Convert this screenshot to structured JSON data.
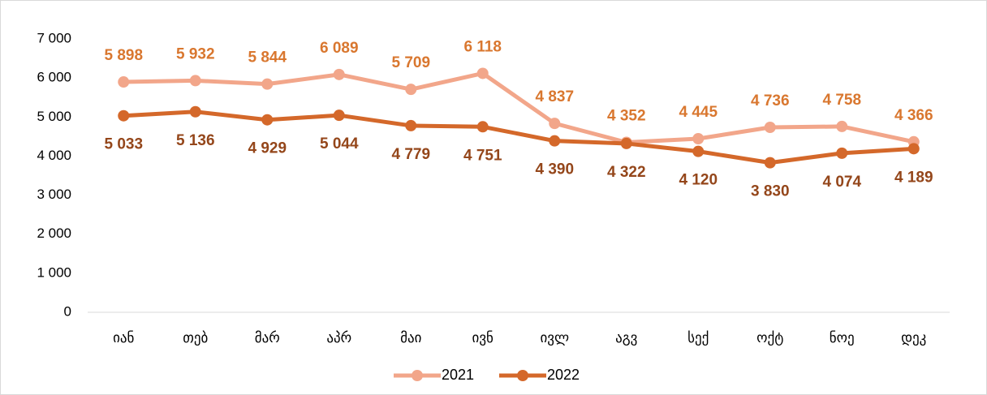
{
  "chart_data": {
    "type": "line",
    "categories": [
      "იან",
      "თებ",
      "მარ",
      "აპრ",
      "მაი",
      "ივნ",
      "ივლ",
      "აგვ",
      "სექ",
      "ოქტ",
      "ნოე",
      "დეკ"
    ],
    "series": [
      {
        "name": "2021",
        "color": "#f2a68a",
        "label_color": "#d9772f",
        "values": [
          5898,
          5932,
          5844,
          6089,
          5709,
          6118,
          4837,
          4352,
          4445,
          4736,
          4758,
          4366
        ],
        "value_labels": [
          "5 898",
          "5 932",
          "5 844",
          "6 089",
          "5 709",
          "6 118",
          "4 837",
          "4 352",
          "4 445",
          "4 736",
          "4 758",
          "4 366"
        ]
      },
      {
        "name": "2022",
        "color": "#d4682a",
        "label_color": "#94461a",
        "values": [
          5033,
          5136,
          4929,
          5044,
          4779,
          4751,
          4390,
          4322,
          4120,
          3830,
          4074,
          4189
        ],
        "value_labels": [
          "5 033",
          "5 136",
          "4 929",
          "5 044",
          "4 779",
          "4 751",
          "4 390",
          "4 322",
          "4 120",
          "3 830",
          "4 074",
          "4 189"
        ]
      }
    ],
    "ylim": [
      0,
      7000
    ],
    "yticks": [
      0,
      {
        "value": 1000,
        "label": "1 000"
      },
      {
        "value": 2000,
        "label": "2 000"
      },
      {
        "value": 3000,
        "label": "3 000"
      },
      {
        "value": 4000,
        "label": "4 000"
      },
      {
        "value": 5000,
        "label": "5 000"
      },
      {
        "value": 6000,
        "label": "6 000"
      },
      {
        "value": 7000,
        "label": "7 000"
      }
    ],
    "legend": "bottom"
  }
}
